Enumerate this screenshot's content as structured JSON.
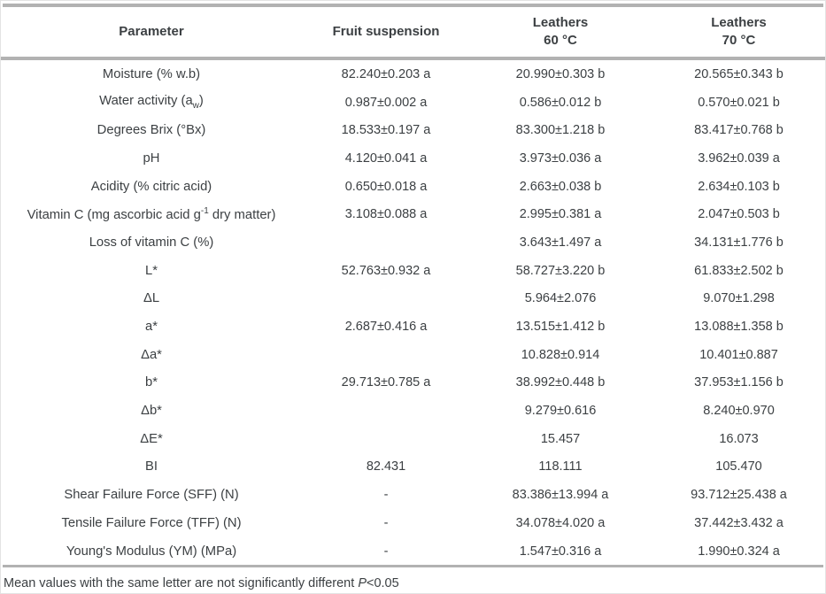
{
  "table": {
    "headers": [
      {
        "lines": [
          "Parameter"
        ]
      },
      {
        "lines": [
          "Fruit suspension"
        ]
      },
      {
        "lines": [
          "Leathers",
          "60 °C"
        ]
      },
      {
        "lines": [
          "Leathers",
          "70 °C"
        ]
      }
    ],
    "rows": [
      {
        "parameter": "Moisture (% w.b)",
        "fruit": "82.240±0.203 a",
        "l60": "20.990±0.303 b",
        "l70": "20.565±0.343 b"
      },
      {
        "parameter": "Water activity (a",
        "sub": "w",
        "suffix": ")",
        "fruit": "0.987±0.002 a",
        "l60": "0.586±0.012 b",
        "l70": "0.570±0.021 b"
      },
      {
        "parameter": "Degrees Brix (°Bx)",
        "fruit": "18.533±0.197 a",
        "l60": "83.300±1.218 b",
        "l70": "83.417±0.768 b"
      },
      {
        "parameter": "pH",
        "fruit": "4.120±0.041 a",
        "l60": "3.973±0.036 a",
        "l70": "3.962±0.039 a"
      },
      {
        "parameter": "Acidity (% citric acid)",
        "fruit": "0.650±0.018 a",
        "l60": "2.663±0.038 b",
        "l70": "2.634±0.103 b"
      },
      {
        "parameter": "Vitamin C (mg ascorbic acid g",
        "sup": "-1",
        "suffix": " dry matter)",
        "fruit": "3.108±0.088 a",
        "l60": "2.995±0.381 a",
        "l70": "2.047±0.503 b"
      },
      {
        "parameter": "Loss of vitamin C (%)",
        "fruit": "",
        "l60": "3.643±1.497 a",
        "l70": "34.131±1.776 b"
      },
      {
        "parameter": "L*",
        "fruit": "52.763±0.932 a",
        "l60": "58.727±3.220 b",
        "l70": "61.833±2.502 b"
      },
      {
        "parameter": "ΔL",
        "fruit": "",
        "l60": "5.964±2.076",
        "l70": "9.070±1.298"
      },
      {
        "parameter": "a*",
        "fruit": "2.687±0.416 a",
        "l60": "13.515±1.412 b",
        "l70": "13.088±1.358 b"
      },
      {
        "parameter": "Δa*",
        "fruit": "",
        "l60": "10.828±0.914",
        "l70": "10.401±0.887"
      },
      {
        "parameter": "b*",
        "fruit": "29.713±0.785 a",
        "l60": "38.992±0.448 b",
        "l70": "37.953±1.156 b"
      },
      {
        "parameter": "Δb*",
        "fruit": "",
        "l60": "9.279±0.616",
        "l70": "8.240±0.970"
      },
      {
        "parameter": "ΔE*",
        "fruit": "",
        "l60": "15.457",
        "l70": "16.073"
      },
      {
        "parameter": "BI",
        "fruit": "82.431",
        "l60": "118.111",
        "l70": "105.470"
      },
      {
        "parameter": "Shear Failure Force (SFF) (N)",
        "fruit": "-",
        "l60": "83.386±13.994 a",
        "l70": "93.712±25.438 a"
      },
      {
        "parameter": "Tensile Failure Force (TFF) (N)",
        "fruit": "-",
        "l60": "34.078±4.020 a",
        "l70": "37.442±3.432 a"
      },
      {
        "parameter": "Young's Modulus (YM) (MPa)",
        "fruit": "-",
        "l60": "1.547±0.316 a",
        "l70": "1.990±0.324 a"
      }
    ],
    "footnote": {
      "text": "Mean values with the same letter are not significantly different ",
      "italic": "P",
      "rest": "<0.05"
    },
    "colors": {
      "text": "#3c4043",
      "rule": "#b2b2b2"
    }
  }
}
